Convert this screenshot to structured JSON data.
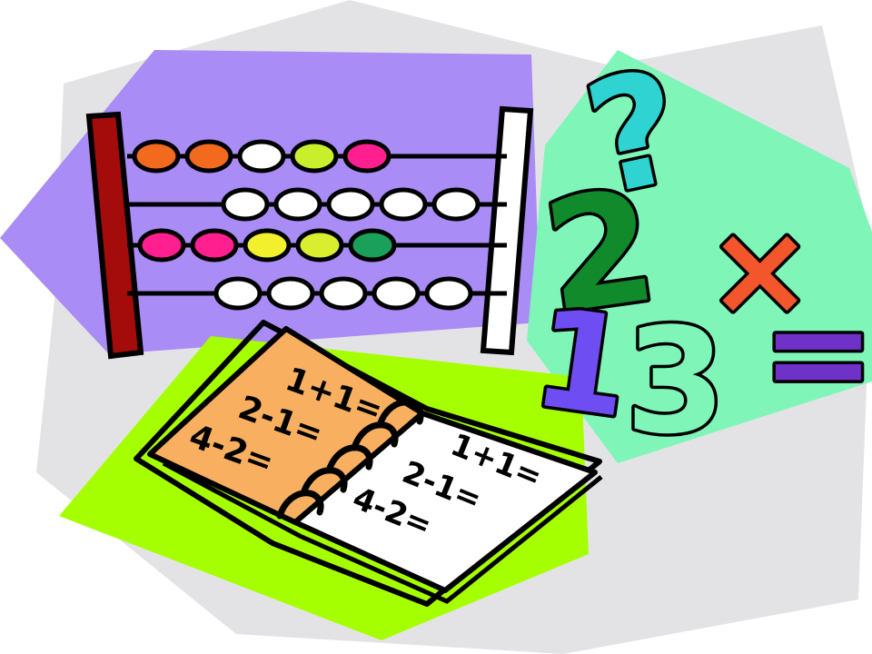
{
  "colors": {
    "background": "#ffffff",
    "gray_shape": "#e3e3e5",
    "purple_shape": "#a98cf5",
    "green_shape": "#7ff5b8",
    "lime_shape": "#a6ff00",
    "book_page": "#f8b060",
    "book_page_right": "#ffffff",
    "abacus_frame_red": "#a40c0c",
    "outline": "#000000"
  },
  "abacus": {
    "rows": [
      {
        "beads": [
          "#f26a1e",
          "#f26a1e",
          "#ffffff",
          "#c9ef2c",
          "#ff1f8f"
        ]
      },
      {
        "beads": [
          "#ffffff",
          "#ffffff",
          "#ffffff",
          "#ffffff",
          "#ffffff"
        ]
      },
      {
        "beads": [
          "#ff1f8f",
          "#ff1f8f",
          "#f2ef2c",
          "#d9ee2f",
          "#1aa05a"
        ]
      },
      {
        "beads": [
          "#ffffff",
          "#ffffff",
          "#ffffff",
          "#ffffff",
          "#ffffff"
        ]
      }
    ]
  },
  "symbols": {
    "question": {
      "text": "?",
      "color": "#2ed3d2"
    },
    "two": {
      "text": "2",
      "color": "#108a2a"
    },
    "times": {
      "text": "×",
      "color": "#f2562a"
    },
    "one": {
      "text": "1",
      "color": "#6e4ef2"
    },
    "three": {
      "text": "3",
      "color": "#7ff5b8"
    },
    "equals": {
      "text": "=",
      "color": "#6e32c9"
    }
  },
  "book": {
    "left_page": [
      "1+1=",
      "2-1=",
      "4-2="
    ],
    "right_page": [
      "1+1=",
      "2-1=",
      "4-2="
    ]
  }
}
